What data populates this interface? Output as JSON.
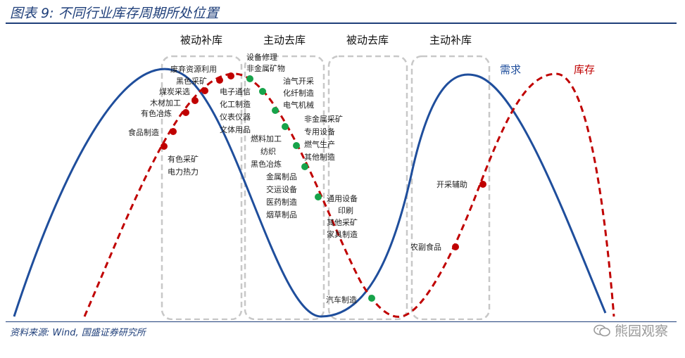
{
  "title": "图表 9:  不同行业库存周期所处位置",
  "source": "资料来源:  Wind, 国盛证券研究所",
  "watermark": "熊园观察",
  "phases": [
    "被动补库",
    "主动去库",
    "被动去库",
    "主动补库"
  ],
  "series": {
    "demand": {
      "name": "需求",
      "color": "#1f4e9c"
    },
    "inventory": {
      "name": "库存",
      "color": "#c00000"
    }
  },
  "colors": {
    "red_dot": "#c00000",
    "green_dot": "#17a34a",
    "box": "#c8c8c8",
    "accent": "#1f3f7a"
  },
  "labels": [
    "废弃资源利用",
    "黑色采矿",
    "煤炭采选",
    "木材加工",
    "有色冶炼",
    "食品制造",
    "有色采矿",
    "电力热力",
    "设备修理",
    "非金属矿物",
    "电子通信",
    "化工制造",
    "仪表仪器",
    "文体用品",
    "油气开采",
    "化纤制造",
    "电气机械",
    "非金属采矿",
    "专用设备",
    "燃料加工",
    "燃气生产",
    "纺织",
    "其他制造",
    "黑色冶炼",
    "金属制品",
    "交运设备",
    "医药制造",
    "烟草制品",
    "通用设备",
    "印刷",
    "其他采矿",
    "家具制造",
    "汽车制造",
    "开采辅助",
    "农副食品"
  ]
}
